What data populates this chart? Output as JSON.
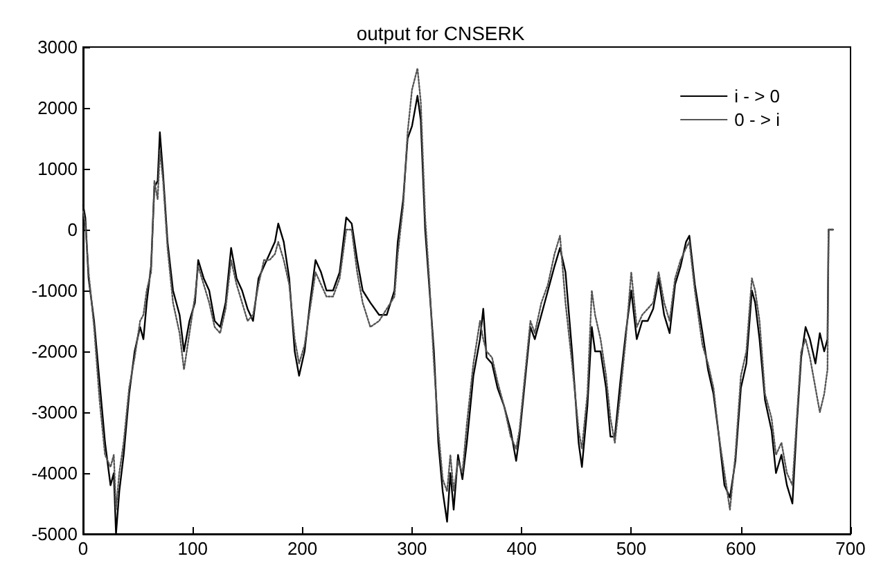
{
  "chart_data": {
    "type": "line",
    "title": "output for CNSERK",
    "x": [
      0,
      2,
      5,
      10,
      15,
      20,
      25,
      28,
      30,
      33,
      37,
      42,
      47,
      52,
      55,
      58,
      62,
      65,
      68,
      70,
      73,
      77,
      82,
      88,
      92,
      97,
      102,
      105,
      110,
      115,
      120,
      125,
      130,
      135,
      140,
      145,
      150,
      155,
      160,
      165,
      170,
      175,
      178,
      183,
      188,
      193,
      197,
      202,
      207,
      212,
      217,
      222,
      228,
      234,
      240,
      245,
      250,
      255,
      262,
      270,
      277,
      284,
      287,
      292,
      296,
      300,
      305,
      308,
      312,
      316,
      320,
      324,
      328,
      332,
      335,
      338,
      342,
      346,
      350,
      356,
      362,
      365,
      368,
      373,
      378,
      384,
      390,
      395,
      398,
      403,
      408,
      412,
      418,
      424,
      430,
      435,
      440,
      446,
      452,
      455,
      460,
      464,
      467,
      472,
      477,
      481,
      485,
      490,
      495,
      500,
      505,
      510,
      515,
      520,
      525,
      530,
      535,
      540,
      545,
      550,
      553,
      558,
      565,
      570,
      575,
      580,
      585,
      590,
      595,
      600,
      605,
      610,
      613,
      617,
      622,
      628,
      632,
      637,
      642,
      647,
      651,
      655,
      659,
      663,
      668,
      672,
      676,
      679,
      680,
      684
    ],
    "series": [
      {
        "name": "i - > 0",
        "color": "#000000",
        "line_style": "solid",
        "values": [
          400,
          200,
          -800,
          -1500,
          -2500,
          -3500,
          -4200,
          -4000,
          -5000,
          -4300,
          -3700,
          -2700,
          -2000,
          -1600,
          -1800,
          -1200,
          -600,
          700,
          800,
          1600,
          900,
          -200,
          -1000,
          -1400,
          -2000,
          -1500,
          -1200,
          -500,
          -800,
          -1000,
          -1500,
          -1600,
          -1200,
          -300,
          -800,
          -1000,
          -1300,
          -1500,
          -800,
          -600,
          -400,
          -200,
          100,
          -200,
          -800,
          -2000,
          -2400,
          -2000,
          -1200,
          -500,
          -700,
          -1000,
          -1000,
          -700,
          200,
          100,
          -500,
          -1000,
          -1200,
          -1400,
          -1400,
          -1000,
          -200,
          500,
          1500,
          1700,
          2200,
          1800,
          0,
          -1000,
          -2000,
          -3500,
          -4300,
          -4800,
          -4000,
          -4600,
          -3700,
          -4100,
          -3500,
          -2400,
          -1800,
          -1300,
          -2100,
          -2200,
          -2600,
          -2900,
          -3300,
          -3800,
          -3400,
          -2500,
          -1600,
          -1800,
          -1400,
          -1000,
          -600,
          -300,
          -700,
          -2000,
          -3500,
          -3900,
          -2900,
          -1600,
          -2000,
          -2000,
          -2600,
          -3400,
          -3400,
          -2500,
          -1700,
          -1000,
          -1800,
          -1500,
          -1500,
          -1300,
          -800,
          -1400,
          -1700,
          -900,
          -600,
          -200,
          -100,
          -900,
          -1700,
          -2300,
          -2700,
          -3400,
          -4200,
          -4400,
          -3800,
          -2600,
          -2200,
          -1000,
          -1200,
          -1800,
          -2800,
          -3300,
          -4000,
          -3700,
          -4200,
          -4500,
          -3200,
          -2100,
          -1600,
          -1800,
          -2200,
          -1700,
          -2000,
          -1800,
          0,
          0
        ]
      },
      {
        "name": "0 - > i",
        "color": "#555555",
        "line_style": "dotted",
        "values": [
          300,
          100,
          -700,
          -1600,
          -2800,
          -3700,
          -3900,
          -3700,
          -4600,
          -4000,
          -3500,
          -2600,
          -2100,
          -1500,
          -1400,
          -1000,
          -700,
          800,
          500,
          1300,
          800,
          -300,
          -1200,
          -1700,
          -2300,
          -1700,
          -1100,
          -600,
          -900,
          -1200,
          -1600,
          -1700,
          -1300,
          -500,
          -900,
          -1200,
          -1500,
          -1400,
          -900,
          -500,
          -500,
          -400,
          -200,
          -500,
          -900,
          -1800,
          -2200,
          -1900,
          -1300,
          -700,
          -900,
          -1100,
          -1100,
          -800,
          0,
          0,
          -700,
          -1200,
          -1600,
          -1500,
          -1300,
          -1100,
          -400,
          400,
          1600,
          2300,
          2650,
          2100,
          200,
          -900,
          -2200,
          -3300,
          -4100,
          -4300,
          -3700,
          -4300,
          -3800,
          -4000,
          -3200,
          -2200,
          -1500,
          -1800,
          -2000,
          -2100,
          -2500,
          -2900,
          -3400,
          -3600,
          -3300,
          -2400,
          -1500,
          -1700,
          -1200,
          -900,
          -400,
          -100,
          -1200,
          -2200,
          -3300,
          -3600,
          -2700,
          -1000,
          -1400,
          -1800,
          -2400,
          -3100,
          -3500,
          -2700,
          -1800,
          -700,
          -1600,
          -1400,
          -1300,
          -1200,
          -700,
          -1200,
          -1500,
          -800,
          -500,
          -300,
          -200,
          -1000,
          -1900,
          -2200,
          -2600,
          -3400,
          -4000,
          -4600,
          -3700,
          -2400,
          -2000,
          -800,
          -1000,
          -1500,
          -2700,
          -3100,
          -3700,
          -3500,
          -4000,
          -4200,
          -3100,
          -2000,
          -1800,
          -2100,
          -2600,
          -3000,
          -2700,
          -2300,
          0,
          0
        ]
      }
    ],
    "xlim": [
      0,
      700
    ],
    "xticks": [
      0,
      100,
      200,
      300,
      400,
      500,
      600,
      700
    ],
    "ylim": [
      -5000,
      3000
    ],
    "yticks": [
      -5000,
      -4000,
      -3000,
      -2000,
      -1000,
      0,
      1000,
      2000,
      3000
    ],
    "grid": false,
    "legend": "top right",
    "marker": "none"
  }
}
